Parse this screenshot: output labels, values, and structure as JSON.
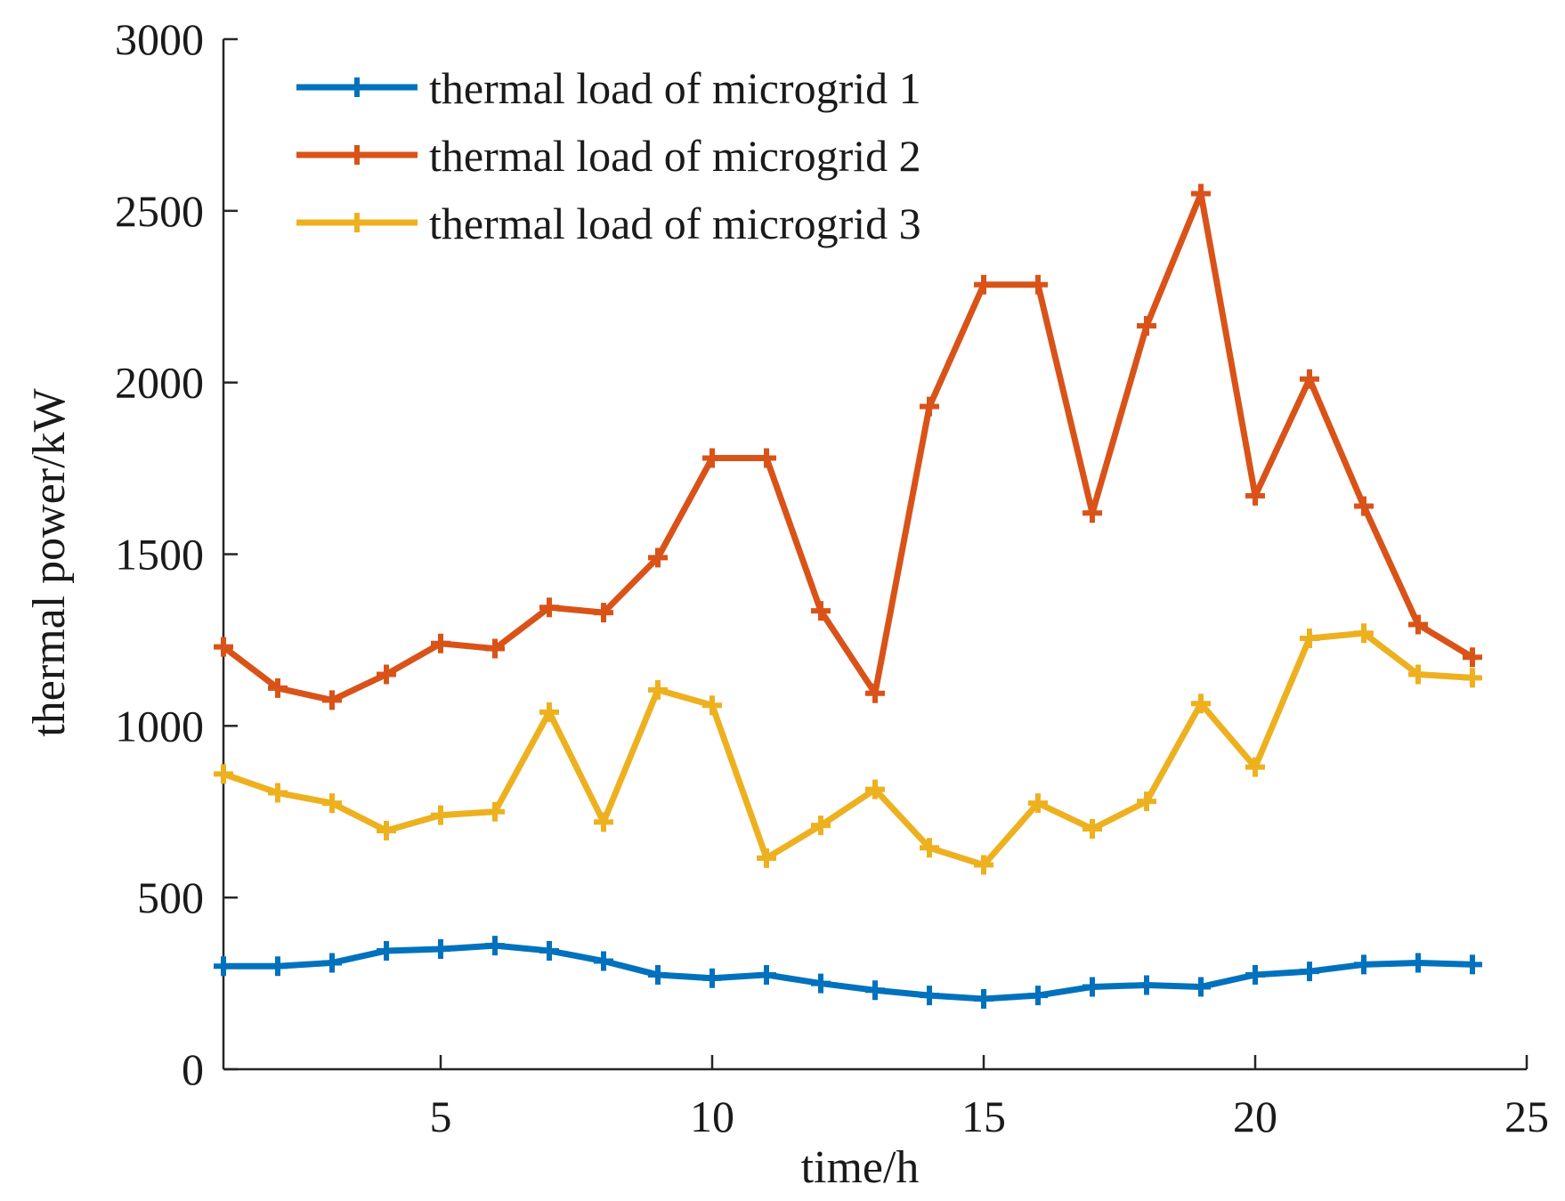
{
  "chart_data": {
    "type": "line",
    "title": "",
    "xlabel": "time/h",
    "ylabel": "thermal power/kW",
    "xlim": [
      1,
      25
    ],
    "ylim": [
      0,
      3000
    ],
    "xticks": [
      5,
      10,
      15,
      20,
      25
    ],
    "yticks": [
      0,
      500,
      1000,
      1500,
      2000,
      2500,
      3000
    ],
    "grid": false,
    "legend_position": "top-left",
    "x": [
      1,
      2,
      3,
      4,
      5,
      6,
      7,
      8,
      9,
      10,
      11,
      12,
      13,
      14,
      15,
      16,
      17,
      18,
      19,
      20,
      21,
      22,
      23,
      24
    ],
    "series": [
      {
        "name": "thermal load of microgrid 1",
        "color": "#0072BD",
        "marker": "plus",
        "values": [
          300,
          300,
          310,
          345,
          350,
          360,
          345,
          315,
          275,
          265,
          275,
          250,
          230,
          215,
          205,
          215,
          240,
          245,
          240,
          275,
          285,
          305,
          310,
          305
        ]
      },
      {
        "name": "thermal load of microgrid 2",
        "color": "#D95319",
        "marker": "plus",
        "values": [
          1230,
          1110,
          1075,
          1150,
          1240,
          1225,
          1345,
          1330,
          1490,
          1780,
          1780,
          1335,
          1095,
          1930,
          2285,
          2285,
          1620,
          2165,
          2550,
          1670,
          2010,
          1640,
          1295,
          1200
        ]
      },
      {
        "name": "thermal load of microgrid 3",
        "color": "#EDB120",
        "marker": "plus",
        "values": [
          860,
          805,
          775,
          695,
          740,
          750,
          1040,
          720,
          1105,
          1060,
          615,
          710,
          815,
          645,
          595,
          775,
          700,
          780,
          1065,
          880,
          1255,
          1270,
          1150,
          1140
        ]
      }
    ]
  }
}
